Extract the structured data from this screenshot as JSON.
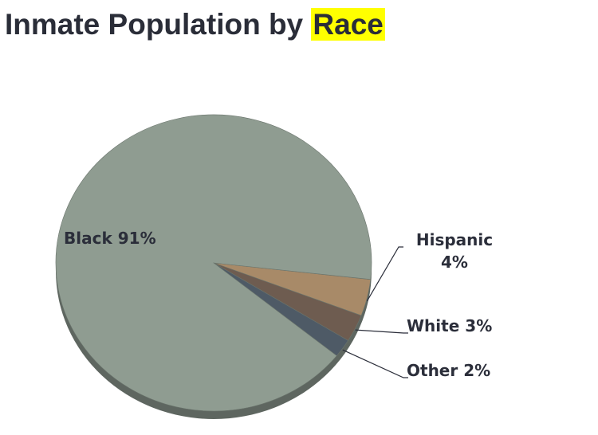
{
  "chart_data": {
    "type": "pie",
    "title": "Inmate Population by Race",
    "highlight": "Race",
    "categories": [
      "Black",
      "Hispanic",
      "White",
      "Other"
    ],
    "values": [
      91,
      4,
      3,
      2
    ],
    "value_labels": [
      "91%",
      "4%",
      "3%",
      "2%"
    ],
    "colors": [
      "#8f9c91",
      "#a88a68",
      "#6e5c50",
      "#4e5a66"
    ]
  }
}
